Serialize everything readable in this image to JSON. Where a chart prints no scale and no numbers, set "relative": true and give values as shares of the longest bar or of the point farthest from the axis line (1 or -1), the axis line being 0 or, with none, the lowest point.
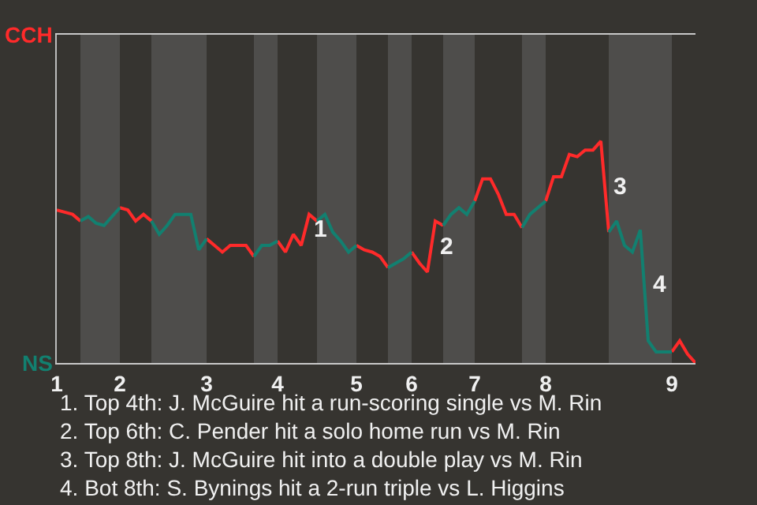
{
  "chart_data": {
    "type": "line",
    "relative": true,
    "categories": [
      "1",
      null,
      null,
      null,
      null,
      null,
      null,
      null,
      "2",
      null,
      null,
      null,
      null,
      null,
      null,
      null,
      null,
      null,
      null,
      "3",
      null,
      null,
      null,
      null,
      null,
      null,
      null,
      null,
      "4",
      null,
      null,
      null,
      null,
      null,
      null,
      null,
      null,
      null,
      "5",
      null,
      null,
      null,
      null,
      null,
      null,
      "6",
      null,
      null,
      null,
      null,
      null,
      null,
      null,
      "7",
      null,
      null,
      null,
      null,
      null,
      null,
      null,
      null,
      "8",
      null,
      null,
      null,
      null,
      null,
      null,
      null,
      null,
      null,
      null,
      null,
      null,
      null,
      null,
      null,
      "9",
      null,
      null,
      null
    ],
    "marker": "none",
    "line_style": "solid",
    "series": [
      {
        "color": "#ff2a2a",
        "values": [
          0.69,
          0.68,
          0.67,
          0.64,
          null,
          null,
          null,
          null,
          0.7,
          0.69,
          0.64,
          0.67,
          0.64,
          null,
          null,
          null,
          null,
          null,
          null,
          0.56,
          0.53,
          0.5,
          0.53,
          0.53,
          0.53,
          0.48,
          null,
          null,
          0.55,
          0.5,
          0.58,
          0.53,
          0.67,
          0.64,
          null,
          null,
          null,
          null,
          0.53,
          0.51,
          0.5,
          0.48,
          0.43,
          null,
          null,
          0.5,
          0.45,
          0.41,
          0.64,
          0.62,
          null,
          null,
          null,
          0.73,
          0.83,
          0.83,
          0.76,
          0.67,
          0.67,
          0.61,
          null,
          null,
          0.73,
          0.84,
          0.84,
          0.94,
          0.93,
          0.96,
          0.96,
          1,
          0.59,
          null,
          null,
          null,
          null,
          null,
          null,
          null,
          0.05,
          0.1,
          0.04,
          0
        ]
      },
      {
        "color": "#128070",
        "values": [
          null,
          null,
          null,
          0.64,
          0.66,
          0.63,
          0.62,
          0.66,
          0.7,
          null,
          null,
          null,
          0.64,
          0.58,
          0.62,
          0.67,
          0.67,
          0.67,
          0.51,
          0.56,
          null,
          null,
          null,
          null,
          null,
          0.48,
          0.53,
          0.53,
          0.55,
          null,
          null,
          null,
          null,
          0.64,
          0.67,
          0.59,
          0.55,
          0.5,
          0.53,
          null,
          null,
          null,
          0.43,
          0.45,
          0.47,
          0.5,
          null,
          null,
          null,
          0.62,
          0.67,
          0.7,
          0.67,
          0.73,
          null,
          null,
          null,
          null,
          null,
          0.61,
          0.67,
          0.7,
          0.73,
          null,
          null,
          null,
          null,
          null,
          null,
          null,
          0.59,
          0.64,
          0.53,
          0.5,
          0.6,
          0.1,
          0.05,
          0.05,
          0.05,
          null,
          null,
          null
        ]
      }
    ],
    "annotations": [
      "CCH",
      "NS",
      {
        "text": "1",
        "y": 0.67
      },
      {
        "text": "2",
        "y": 0.64
      },
      {
        "text": "3",
        "y": 0.59
      },
      {
        "text": "4",
        "y": 0.1
      },
      "1. Top 4th: J. McGuire hit a run-scoring single vs M. Rin",
      "2. Top 6th: C. Pender hit a solo home run vs M. Rin",
      "3. Top 8th: J. McGuire hit into a double play vs M. Rin",
      "4. Bot 8th: S. Bynings hit a 2-run triple vs L. Higgins"
    ]
  }
}
